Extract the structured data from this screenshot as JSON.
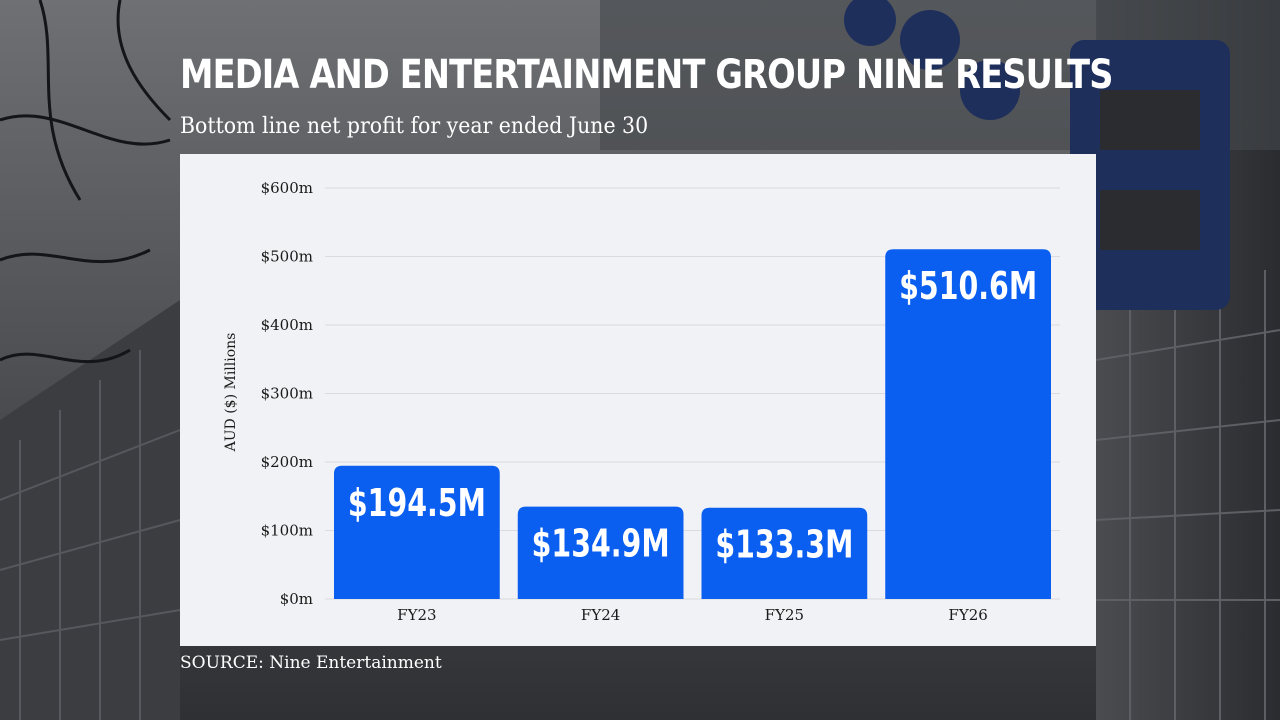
{
  "header": {
    "title": "MEDIA AND ENTERTAINMENT GROUP NINE RESULTS",
    "subtitle": "Bottom line net profit for year ended June 30"
  },
  "footer": {
    "source": "SOURCE: Nine Entertainment"
  },
  "colors": {
    "bar": "#0a5ff0",
    "panel": "#f1f2f5",
    "grid": "#d9dbe0",
    "text": "#1a1a1a"
  },
  "chart_data": {
    "type": "bar",
    "categories": [
      "FY23",
      "FY24",
      "FY25",
      "FY26"
    ],
    "values": [
      194.5,
      134.9,
      133.3,
      510.6
    ],
    "data_labels": [
      "$194.5M",
      "$134.9M",
      "$133.3M",
      "$510.6M"
    ],
    "ylabel": "AUD ($) Millions",
    "ylim": [
      0,
      600
    ],
    "yticks": [
      0,
      100,
      200,
      300,
      400,
      500,
      600
    ],
    "ytick_labels": [
      "$0m",
      "$100m",
      "$200m",
      "$300m",
      "$400m",
      "$500m",
      "$600m"
    ],
    "grid": true,
    "legend": "none"
  }
}
